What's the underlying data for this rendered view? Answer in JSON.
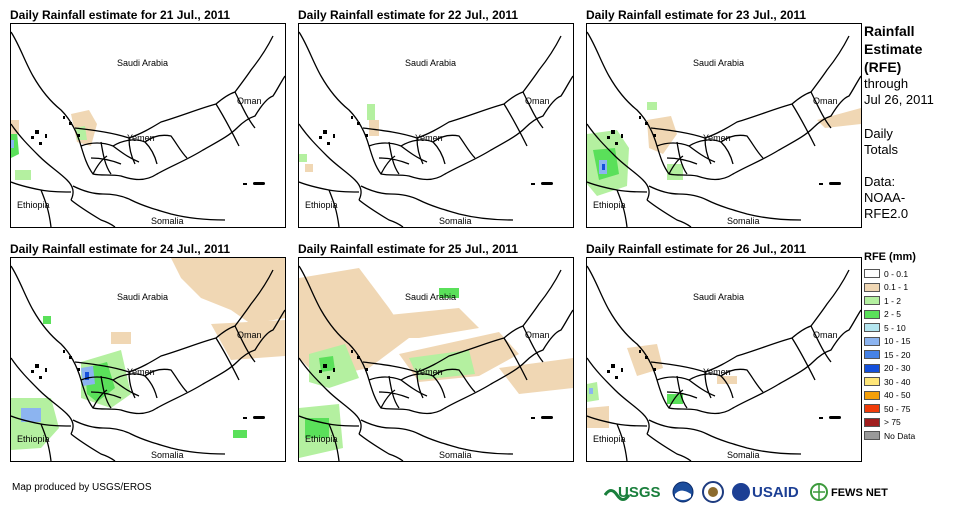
{
  "panels": [
    {
      "title": "Daily Rainfall estimate for 21 Jul., 2011",
      "rain": "p21"
    },
    {
      "title": "Daily Rainfall estimate for 22 Jul., 2011",
      "rain": "p22"
    },
    {
      "title": "Daily Rainfall estimate for 23 Jul., 2011",
      "rain": "p23"
    },
    {
      "title": "Daily Rainfall estimate for 24 Jul., 2011",
      "rain": "p24"
    },
    {
      "title": "Daily Rainfall estimate for 25 Jul., 2011",
      "rain": "p25"
    },
    {
      "title": "Daily Rainfall estimate for 26 Jul., 2011",
      "rain": "p26"
    }
  ],
  "map_labels": {
    "saudi": "Saudi Arabia",
    "oman": "Oman",
    "yemen": "Yemen",
    "ethiopia": "Ethiopia",
    "somalia": "Somalia"
  },
  "side": {
    "title_lines": [
      "Rainfall",
      "Estimate",
      "(RFE)"
    ],
    "through": "through",
    "date": "Jul 26, 2011",
    "daily_1": "Daily",
    "daily_2": "Totals",
    "data_1": "Data:",
    "data_2": "NOAA-",
    "data_3": "RFE2.0"
  },
  "legend": {
    "title": "RFE (mm)",
    "items": [
      {
        "label": "0 - 0.1",
        "color": "#ffffff"
      },
      {
        "label": "0.1 - 1",
        "color": "#f0d7b4"
      },
      {
        "label": "1 - 2",
        "color": "#b4f0a0"
      },
      {
        "label": "2 - 5",
        "color": "#5ae05a"
      },
      {
        "label": "5 - 10",
        "color": "#b4e6f0"
      },
      {
        "label": "10 - 15",
        "color": "#8cb4f0"
      },
      {
        "label": "15 - 20",
        "color": "#4682e6"
      },
      {
        "label": "20 - 30",
        "color": "#1450dc"
      },
      {
        "label": "30 - 40",
        "color": "#ffe678"
      },
      {
        "label": "40 - 50",
        "color": "#f5a00a"
      },
      {
        "label": "50 - 75",
        "color": "#f03c0a"
      },
      {
        "label": "> 75",
        "color": "#a01e1e"
      },
      {
        "label": "No Data",
        "color": "#9a9a9a"
      }
    ]
  },
  "credit": "Map produced by USGS/EROS",
  "logos": {
    "usgs": "USGS",
    "usaid": "USAID",
    "fews": "FEWS NET"
  }
}
